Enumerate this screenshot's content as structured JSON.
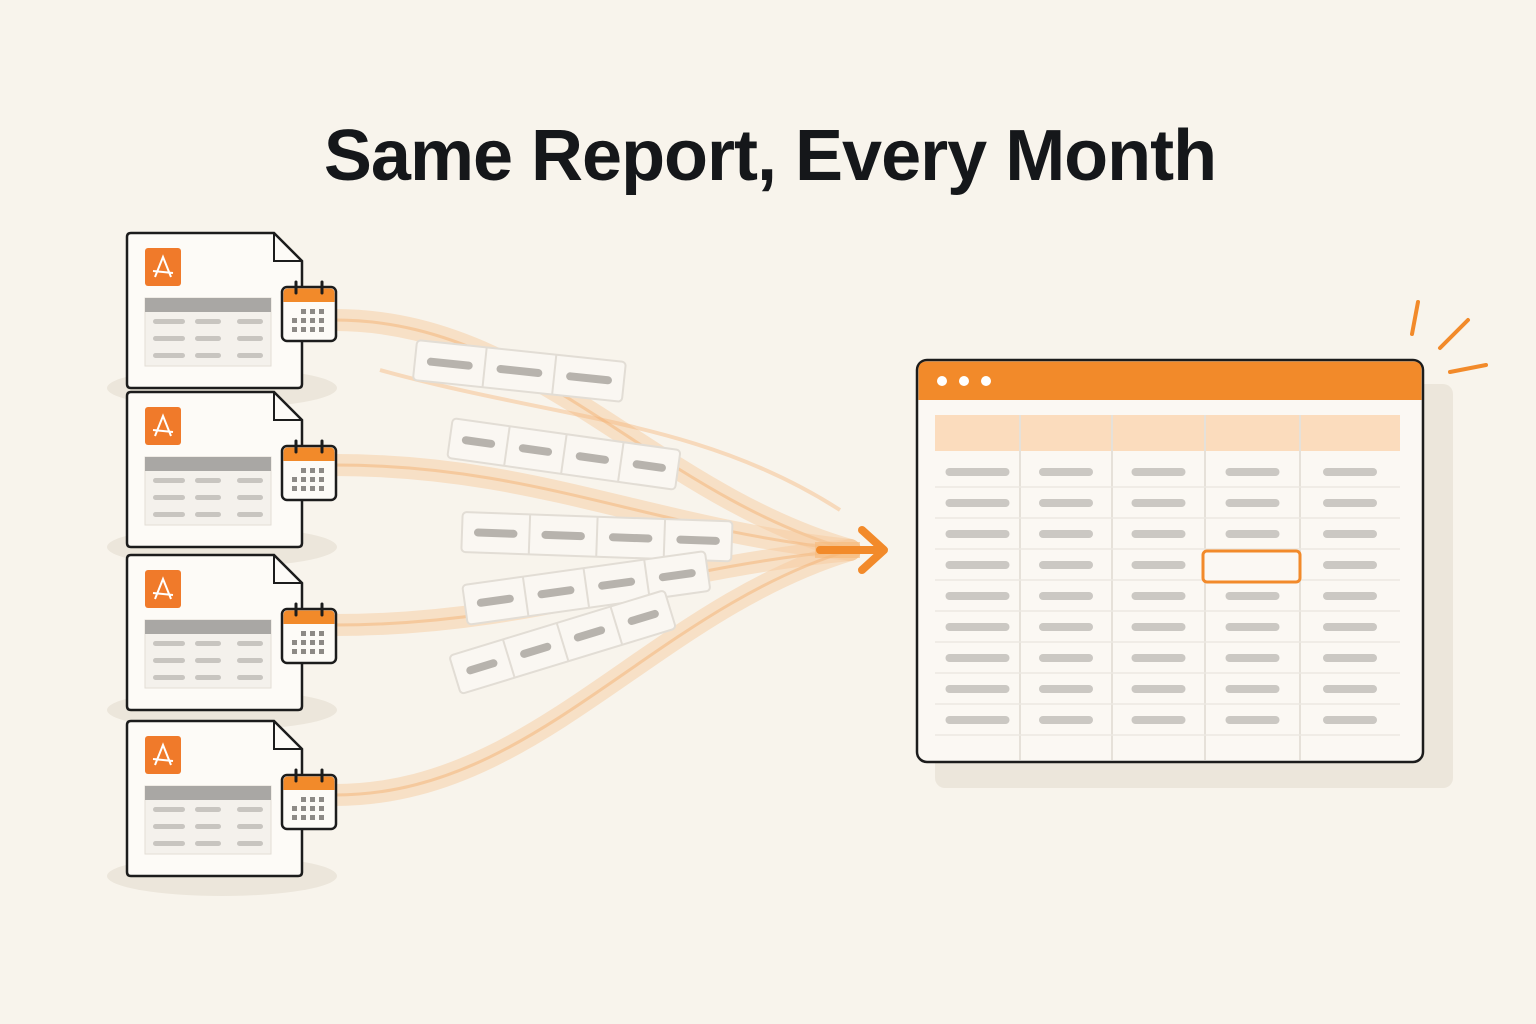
{
  "header": {
    "title": "Same Report, Every Month"
  }
}
